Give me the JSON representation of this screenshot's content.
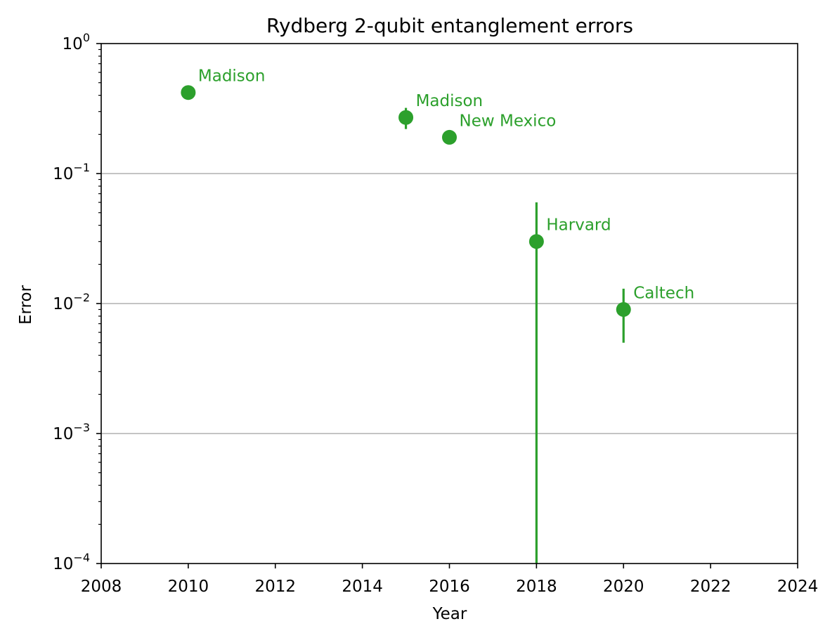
{
  "chart_data": {
    "type": "scatter",
    "title": "Rydberg 2-qubit entanglement errors",
    "xlabel": "Year",
    "ylabel": "Error",
    "xlim": [
      2008,
      2024
    ],
    "ylim": [
      0.0001,
      1
    ],
    "yscale": "log",
    "x_ticks": [
      2008,
      2010,
      2012,
      2014,
      2016,
      2018,
      2020,
      2022,
      2024
    ],
    "y_ticks": [
      {
        "value": 0.0001,
        "base": "10",
        "exp": "−4"
      },
      {
        "value": 0.001,
        "base": "10",
        "exp": "−3"
      },
      {
        "value": 0.01,
        "base": "10",
        "exp": "−2"
      },
      {
        "value": 0.1,
        "base": "10",
        "exp": "−1"
      },
      {
        "value": 1,
        "base": "10",
        "exp": "0"
      }
    ],
    "grid": "horizontal at major y ticks",
    "series_color": "#2ca02c",
    "points": [
      {
        "x": 2010,
        "y": 0.42,
        "y_low": 0.42,
        "y_high": 0.42,
        "label": "Madison"
      },
      {
        "x": 2015,
        "y": 0.27,
        "y_low": 0.22,
        "y_high": 0.32,
        "label": "Madison"
      },
      {
        "x": 2016,
        "y": 0.19,
        "y_low": 0.19,
        "y_high": 0.19,
        "label": "New Mexico"
      },
      {
        "x": 2018,
        "y": 0.03,
        "y_low": 0.0001,
        "y_high": 0.06,
        "label": "Harvard"
      },
      {
        "x": 2020,
        "y": 0.009,
        "y_low": 0.005,
        "y_high": 0.013,
        "label": "Caltech"
      }
    ]
  }
}
